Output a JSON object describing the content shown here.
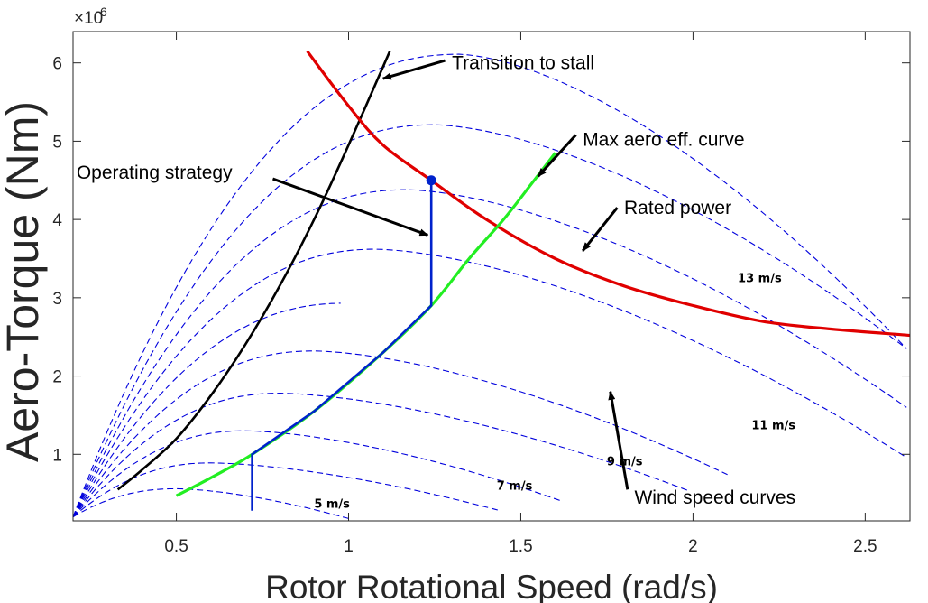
{
  "chart_data": {
    "type": "line",
    "title": "",
    "xlabel": "Rotor Rotational Speed (rad/s)",
    "ylabel": "Aero-Torque (Nm)",
    "y_exponent_label": "×10",
    "y_exponent_power": "6",
    "xlim": [
      0.2,
      2.63
    ],
    "ylim": [
      0.15,
      6.4
    ],
    "x_ticks": [
      0.5,
      1,
      1.5,
      2,
      2.5
    ],
    "x_tick_labels": [
      "0.5",
      "1",
      "1.5",
      "2",
      "2.5"
    ],
    "y_ticks": [
      1,
      2,
      3,
      4,
      5,
      6
    ],
    "y_tick_labels": [
      "1",
      "2",
      "3",
      "4",
      "5",
      "6"
    ],
    "grid": false,
    "wind_speed_curves": [
      {
        "peak_x": 0.5,
        "peak_y": 0.56,
        "end_x": 1.0,
        "end_y": 0.18
      },
      {
        "peak_x": 0.6,
        "peak_y": 0.89,
        "end_x": 1.44,
        "end_y": 0.28
      },
      {
        "peak_x": 0.7,
        "peak_y": 1.3,
        "end_x": 1.62,
        "end_y": 0.4
      },
      {
        "peak_x": 0.8,
        "peak_y": 1.78,
        "end_x": 1.99,
        "end_y": 0.53
      },
      {
        "peak_x": 0.9,
        "peak_y": 2.32,
        "end_x": 2.1,
        "end_y": 0.74
      },
      {
        "peak_x": 0.99,
        "peak_y": 2.93,
        "end_x": 2.37,
        "end_y": 0.96
      },
      {
        "peak_x": 1.08,
        "peak_y": 3.62,
        "end_x": 2.62,
        "end_y": 0.96
      },
      {
        "peak_x": 1.17,
        "peak_y": 4.38,
        "end_x": 2.62,
        "end_y": 1.6
      },
      {
        "peak_x": 1.25,
        "peak_y": 5.21,
        "end_x": 2.62,
        "end_y": 2.35
      },
      {
        "peak_x": 1.32,
        "peak_y": 6.11,
        "end_x": 2.62,
        "end_y": 2.35
      }
    ],
    "series": [
      {
        "name": "Transition to stall",
        "color": "#000000",
        "x": [
          0.33,
          0.4,
          0.5,
          0.6,
          0.7,
          0.8,
          0.9,
          1.0,
          1.12
        ],
        "y": [
          0.55,
          0.8,
          1.2,
          1.75,
          2.4,
          3.15,
          4.0,
          4.95,
          6.15
        ]
      },
      {
        "name": "Rated power",
        "color": "#e00000",
        "x": [
          0.88,
          1.0,
          1.1,
          1.24,
          1.4,
          1.6,
          1.8,
          2.0,
          2.2,
          2.4,
          2.63
        ],
        "y": [
          6.15,
          5.45,
          4.95,
          4.5,
          4.0,
          3.5,
          3.15,
          2.9,
          2.7,
          2.6,
          2.52
        ]
      },
      {
        "name": "Max aero eff. curve",
        "color": "#22ee22",
        "x": [
          0.5,
          0.6,
          0.72,
          0.9,
          1.1,
          1.24,
          1.35,
          1.45,
          1.53,
          1.6
        ],
        "y": [
          0.47,
          0.7,
          1.0,
          1.55,
          2.3,
          2.9,
          3.5,
          4.0,
          4.45,
          4.85
        ]
      },
      {
        "name": "Operating strategy",
        "color": "#0022cc",
        "x": [
          0.72,
          0.72,
          0.72,
          0.9,
          1.1,
          1.24,
          1.24,
          1.24
        ],
        "y": [
          0.28,
          0.63,
          1.0,
          1.55,
          2.3,
          2.9,
          3.7,
          4.5
        ]
      }
    ],
    "marker": {
      "x": 1.24,
      "y": 4.5,
      "color": "#0022cc"
    },
    "wind_labels": [
      {
        "text": "5 m/s",
        "x": 0.9,
        "y": 0.32
      },
      {
        "text": "7 m/s",
        "x": 1.43,
        "y": 0.55
      },
      {
        "text": "9 m/s",
        "x": 1.75,
        "y": 0.86
      },
      {
        "text": "11 m/s",
        "x": 2.17,
        "y": 1.32
      },
      {
        "text": "13 m/s",
        "x": 2.13,
        "y": 3.2
      }
    ],
    "annotations": [
      {
        "text": "Transition to stall",
        "text_x": 1.3,
        "text_y": 6.0,
        "arrow_from_x": 1.28,
        "arrow_from_y": 6.03,
        "arrow_to_x": 1.1,
        "arrow_to_y": 5.8
      },
      {
        "text": "Max aero eff. curve",
        "text_x": 1.68,
        "text_y": 5.02,
        "arrow_from_x": 1.66,
        "arrow_from_y": 5.08,
        "arrow_to_x": 1.55,
        "arrow_to_y": 4.55
      },
      {
        "text": "Operating strategy",
        "text_x": 0.21,
        "text_y": 4.6,
        "arrow_from_x": 0.78,
        "arrow_from_y": 4.52,
        "arrow_to_x": 1.23,
        "arrow_to_y": 3.8
      },
      {
        "text": "Rated power",
        "text_x": 1.8,
        "text_y": 4.15,
        "arrow_from_x": 1.78,
        "arrow_from_y": 4.15,
        "arrow_to_x": 1.68,
        "arrow_to_y": 3.6
      },
      {
        "text": "Wind speed curves",
        "text_x": 1.83,
        "text_y": 0.45,
        "arrow_from_x": 1.81,
        "arrow_from_y": 0.55,
        "arrow_to_x": 1.76,
        "arrow_to_y": 1.8
      }
    ]
  }
}
